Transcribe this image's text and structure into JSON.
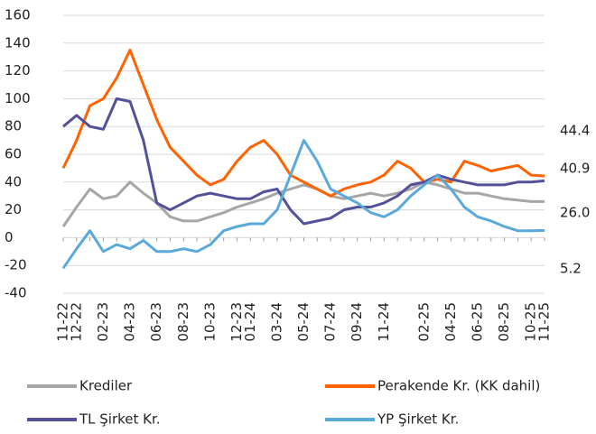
{
  "chart_data": {
    "type": "line",
    "categories": [
      "11-22",
      "12-22",
      null,
      "02-23",
      null,
      "04-23",
      null,
      "06-23",
      null,
      "08-23",
      null,
      "10-23",
      null,
      "12-23",
      "01-24",
      null,
      "03-24",
      null,
      "05-24",
      null,
      "07-24",
      null,
      "09-24",
      null,
      "11-24",
      null,
      null,
      "02-25",
      null,
      "04-25",
      null,
      "06-25",
      null,
      "08-25",
      null,
      "10-25",
      "11-25"
    ],
    "series": [
      {
        "name": "Krediler",
        "color": "#a6a6a6",
        "values": [
          8,
          22,
          35,
          28,
          30,
          40,
          32,
          25,
          15,
          12,
          12,
          15,
          18,
          22,
          25,
          28,
          32,
          35,
          38,
          35,
          30,
          28,
          30,
          32,
          30,
          32,
          35,
          40,
          38,
          35,
          32,
          32,
          30,
          28,
          27,
          26,
          26.0
        ]
      },
      {
        "name": "Perakende Kr. (KK dahil)",
        "color": "#ff6200",
        "values": [
          50,
          70,
          95,
          100,
          115,
          135,
          110,
          85,
          65,
          55,
          45,
          38,
          42,
          55,
          65,
          70,
          60,
          45,
          40,
          35,
          30,
          35,
          38,
          40,
          45,
          55,
          50,
          40,
          42,
          40,
          55,
          52,
          48,
          50,
          52,
          45,
          44.4
        ]
      },
      {
        "name": "TL Şirket Kr.",
        "color": "#525199",
        "values": [
          80,
          88,
          80,
          78,
          100,
          98,
          70,
          25,
          20,
          25,
          30,
          32,
          30,
          28,
          28,
          33,
          35,
          20,
          10,
          12,
          14,
          20,
          22,
          22,
          25,
          30,
          38,
          40,
          45,
          42,
          40,
          38,
          38,
          38,
          40,
          40,
          40.9
        ]
      },
      {
        "name": "YP Şirket Kr.",
        "color": "#5aa9dc",
        "values": [
          -22,
          -8,
          5,
          -10,
          -5,
          -8,
          -2,
          -10,
          -10,
          -8,
          -10,
          -5,
          5,
          8,
          10,
          10,
          20,
          45,
          70,
          55,
          35,
          30,
          25,
          18,
          15,
          20,
          30,
          38,
          45,
          35,
          22,
          15,
          12,
          8,
          5,
          5,
          5.2
        ]
      }
    ],
    "annotations": [
      "44.4",
      "40.9",
      "26.0",
      "5.2"
    ],
    "ylim": [
      -40,
      160
    ],
    "yticks": [
      -40,
      -20,
      0,
      20,
      40,
      60,
      80,
      100,
      120,
      140,
      160
    ],
    "grid": true
  }
}
